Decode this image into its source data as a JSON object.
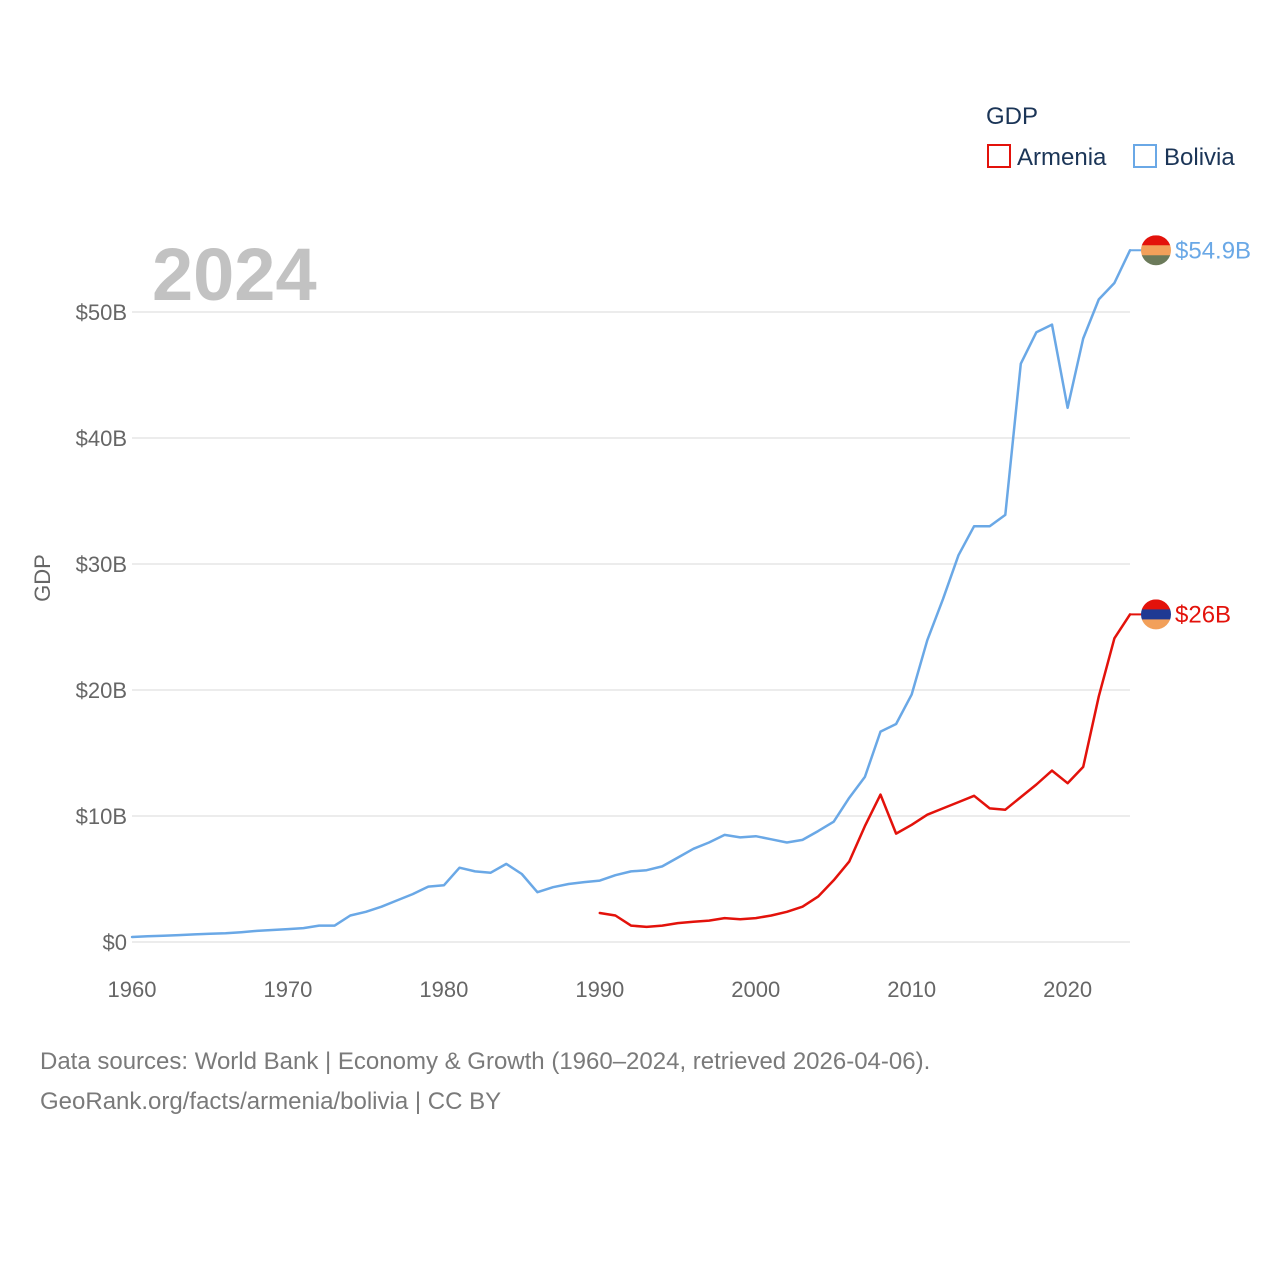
{
  "chart_data": {
    "type": "line",
    "year_label": "2024",
    "legend_title": "GDP",
    "ylabel": "GDP",
    "xlabel": "",
    "xlim": [
      1960,
      2024
    ],
    "ylim": [
      0,
      57
    ],
    "y_ticks": [
      {
        "value": 0,
        "label": "$0"
      },
      {
        "value": 10,
        "label": "$10B"
      },
      {
        "value": 20,
        "label": "$20B"
      },
      {
        "value": 30,
        "label": "$30B"
      },
      {
        "value": 40,
        "label": "$40B"
      },
      {
        "value": 50,
        "label": "$50B"
      }
    ],
    "x_ticks": [
      {
        "value": 1960,
        "label": "1960"
      },
      {
        "value": 1970,
        "label": "1970"
      },
      {
        "value": 1980,
        "label": "1980"
      },
      {
        "value": 1990,
        "label": "1990"
      },
      {
        "value": 2000,
        "label": "2000"
      },
      {
        "value": 2010,
        "label": "2010"
      },
      {
        "value": 2020,
        "label": "2020"
      }
    ],
    "series": [
      {
        "name": "Armenia",
        "color": "#e3120b",
        "end_label": "$26B",
        "flag_colors": [
          "#e3120b",
          "#1f3a93",
          "#f2a05a"
        ],
        "x": [
          1990,
          1991,
          1992,
          1993,
          1994,
          1995,
          1996,
          1997,
          1998,
          1999,
          2000,
          2001,
          2002,
          2003,
          2004,
          2005,
          2006,
          2007,
          2008,
          2009,
          2010,
          2011,
          2012,
          2013,
          2014,
          2015,
          2016,
          2017,
          2018,
          2019,
          2020,
          2021,
          2022,
          2023,
          2024
        ],
        "values": [
          2.3,
          2.1,
          1.3,
          1.2,
          1.3,
          1.5,
          1.6,
          1.7,
          1.9,
          1.8,
          1.9,
          2.1,
          2.4,
          2.8,
          3.6,
          4.9,
          6.4,
          9.2,
          11.7,
          8.6,
          9.3,
          10.1,
          10.6,
          11.1,
          11.6,
          10.6,
          10.5,
          11.5,
          12.5,
          13.6,
          12.6,
          13.9,
          19.5,
          24.1,
          26.0
        ]
      },
      {
        "name": "Bolivia",
        "color": "#6aa8e6",
        "end_label": "$54.9B",
        "flag_colors": [
          "#e3120b",
          "#f2a05a",
          "#6b7a5a"
        ],
        "x": [
          1960,
          1961,
          1962,
          1963,
          1964,
          1965,
          1966,
          1967,
          1968,
          1969,
          1970,
          1971,
          1972,
          1973,
          1974,
          1975,
          1976,
          1977,
          1978,
          1979,
          1980,
          1981,
          1982,
          1983,
          1984,
          1985,
          1986,
          1987,
          1988,
          1989,
          1990,
          1991,
          1992,
          1993,
          1994,
          1995,
          1996,
          1997,
          1998,
          1999,
          2000,
          2001,
          2002,
          2003,
          2004,
          2005,
          2006,
          2007,
          2008,
          2009,
          2010,
          2011,
          2012,
          2013,
          2014,
          2015,
          2016,
          2017,
          2018,
          2019,
          2020,
          2021,
          2022,
          2023,
          2024
        ],
        "values": [
          0.4,
          0.45,
          0.5,
          0.55,
          0.6,
          0.65,
          0.7,
          0.78,
          0.88,
          0.95,
          1.02,
          1.1,
          1.3,
          1.3,
          2.1,
          2.4,
          2.8,
          3.3,
          3.8,
          4.4,
          4.5,
          5.9,
          5.6,
          5.5,
          6.2,
          5.4,
          3.95,
          4.35,
          4.6,
          4.75,
          4.87,
          5.3,
          5.6,
          5.7,
          6.0,
          6.7,
          7.4,
          7.9,
          8.5,
          8.3,
          8.4,
          8.15,
          7.9,
          8.1,
          8.8,
          9.55,
          11.45,
          13.1,
          16.7,
          17.3,
          19.65,
          23.95,
          27.2,
          30.7,
          33.0,
          33.0,
          33.9,
          45.9,
          48.4,
          49.0,
          42.4,
          47.9,
          51.0,
          52.3,
          54.9
        ]
      }
    ],
    "grid": true,
    "legend_placement": "top-right"
  },
  "footer": {
    "line1": "Data sources: World Bank | Economy & Growth (1960–2024, retrieved 2026-04-06).",
    "line2": "GeoRank.org/facts/armenia/bolivia | CC BY"
  }
}
